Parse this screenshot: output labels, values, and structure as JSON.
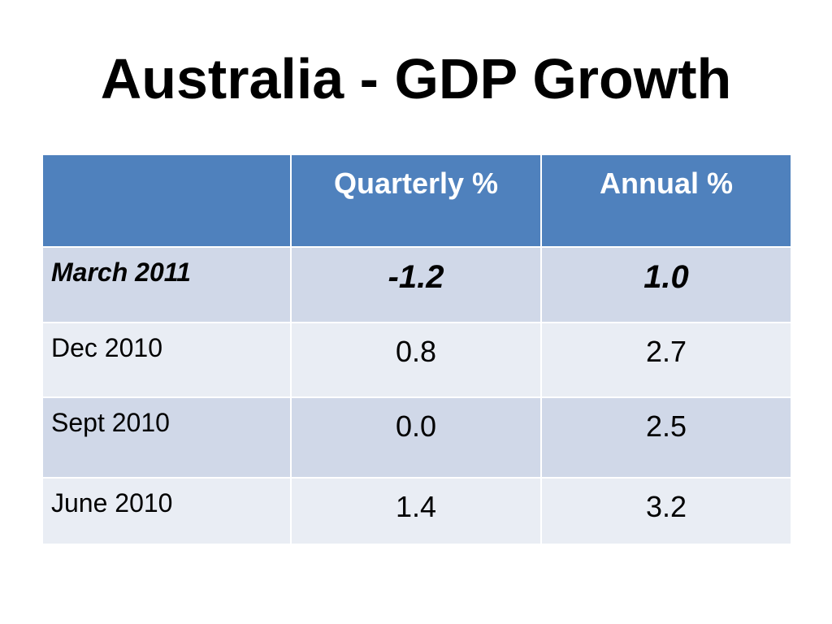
{
  "slide": {
    "title": "Australia - GDP Growth"
  },
  "table": {
    "headers": [
      "",
      "Quarterly %",
      "Annual %"
    ],
    "rows": [
      {
        "period": "March 2011",
        "quarterly": "-1.2",
        "annual": "1.0"
      },
      {
        "period": "Dec 2010",
        "quarterly": "0.8",
        "annual": "2.7"
      },
      {
        "period": "Sept 2010",
        "quarterly": "0.0",
        "annual": "2.5"
      },
      {
        "period": "June 2010",
        "quarterly": "1.4",
        "annual": "3.2"
      }
    ]
  },
  "colors": {
    "header_bg": "#4f81bd",
    "row_odd_bg": "#d0d8e8",
    "row_even_bg": "#e9edf4"
  }
}
